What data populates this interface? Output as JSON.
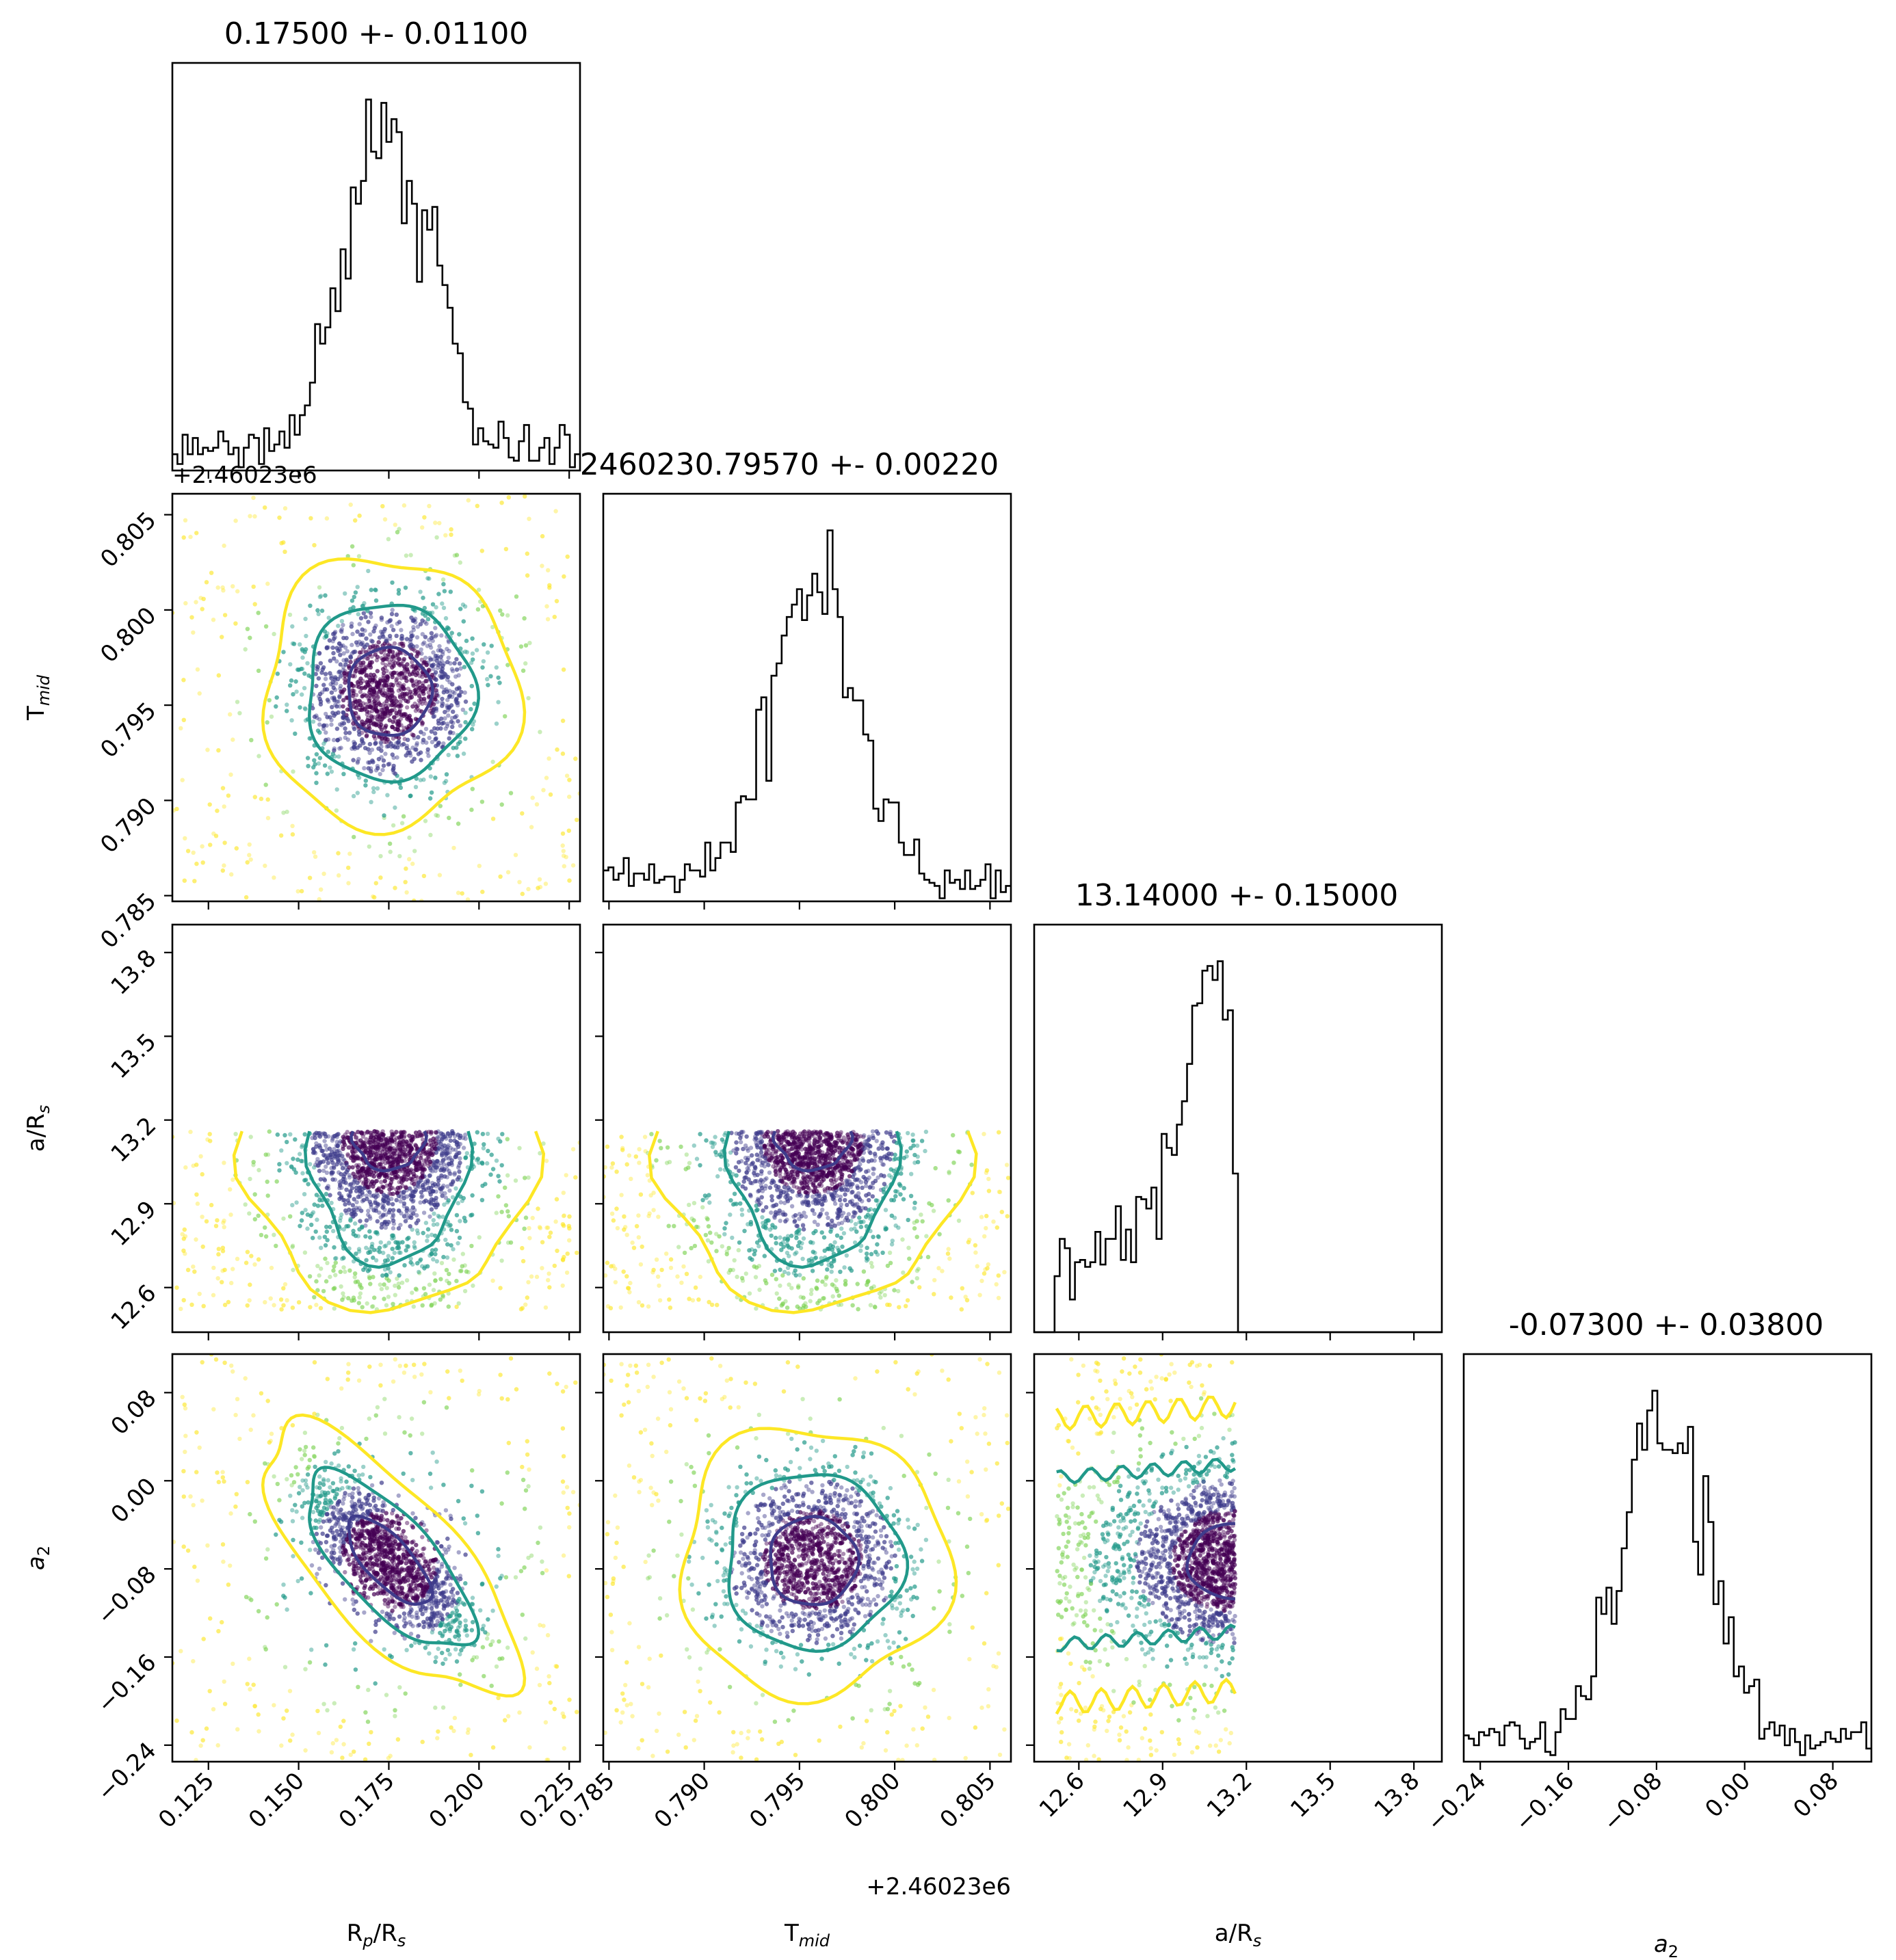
{
  "colors": {
    "c1": "#3f3c8c",
    "c2": "#21998a",
    "c3": "#fde725",
    "dark": "#440154"
  },
  "labels": {
    "rp": "R",
    "rp_sub": "p",
    "rp_mid": "/R",
    "rp_sub2": "s",
    "tm": "T",
    "tm_sub": "mid",
    "ar": "a/R",
    "ar_sub": "s",
    "a2": "a",
    "a2_sub": "2",
    "tmid_offset": "+2.46023e6"
  },
  "titles": {
    "rp": "0.17500 +- 0.01100",
    "tm": "2460230.79570 +- 0.00220",
    "ar": "13.14000 +- 0.15000",
    "a2": "-0.07300 +- 0.03800"
  },
  "chart_data": {
    "type": "corner",
    "parameters": [
      {
        "key": "rp",
        "median": 0.175,
        "sigma": 0.011,
        "range": [
          0.115,
          0.228
        ],
        "ticks": [
          0.125,
          0.15,
          0.175,
          0.2,
          0.225
        ],
        "tick_labels": [
          "0.125",
          "0.150",
          "0.175",
          "0.200",
          "0.225"
        ]
      },
      {
        "key": "tm",
        "median": 0.7957,
        "sigma": 0.0022,
        "range": [
          0.7847,
          0.8061
        ],
        "ticks": [
          0.785,
          0.79,
          0.795,
          0.8,
          0.805
        ],
        "tick_labels": [
          "0.785",
          "0.790",
          "0.795",
          "0.800",
          "0.805"
        ]
      },
      {
        "key": "ar",
        "median": 13.14,
        "sigma": 0.15,
        "range": [
          12.44,
          13.9
        ],
        "ticks": [
          12.6,
          12.9,
          13.2,
          13.5,
          13.8
        ],
        "tick_labels": [
          "12.6",
          "12.9",
          "13.2",
          "13.5",
          "13.8"
        ]
      },
      {
        "key": "a2",
        "median": -0.073,
        "sigma": 0.038,
        "range": [
          -0.255,
          0.115
        ],
        "ticks": [
          -0.24,
          -0.16,
          -0.08,
          0.0,
          0.08
        ],
        "tick_labels": [
          "−0.24",
          "−0.16",
          "−0.08",
          "0.00",
          "0.08"
        ]
      }
    ],
    "contour_levels": [
      "1 sigma",
      "2 sigma",
      "3 sigma"
    ],
    "contour_colors": [
      "#3f3c8c",
      "#21998a",
      "#fde725"
    ]
  }
}
